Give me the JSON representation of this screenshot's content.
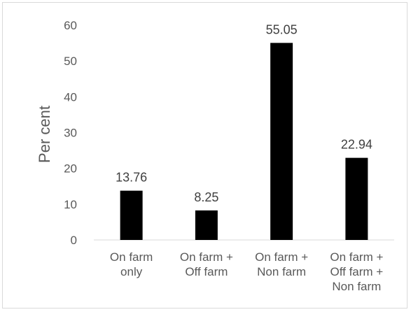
{
  "chart_data": {
    "type": "bar",
    "categories": [
      [
        "On farm",
        "only"
      ],
      [
        "On farm +",
        "Off farm"
      ],
      [
        "On farm +",
        "Non farm"
      ],
      [
        "On farm +",
        "Off farm +",
        "Non farm"
      ]
    ],
    "values": [
      13.76,
      8.25,
      55.05,
      22.94
    ],
    "data_labels": [
      "13.76",
      "8.25",
      "55.05",
      "22.94"
    ],
    "ylabel": "Per cent",
    "ylim": [
      0,
      60
    ],
    "yticks": [
      0,
      10,
      20,
      30,
      40,
      50,
      60
    ],
    "grid": false,
    "legend": "none",
    "bar_color": "#000000",
    "axis_color": "#d9d9d9"
  }
}
